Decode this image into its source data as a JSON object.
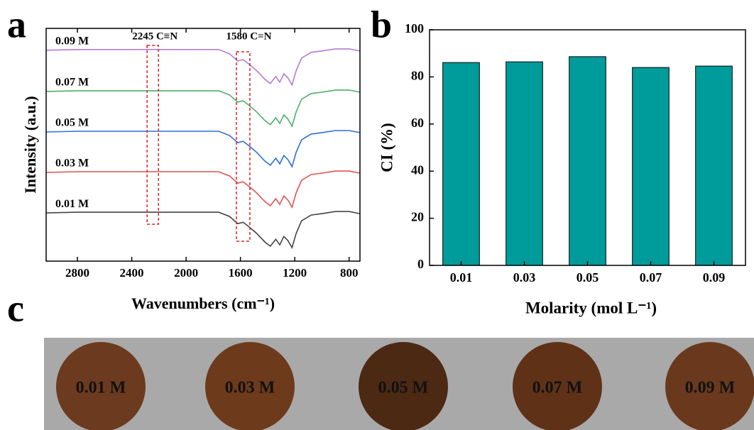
{
  "chart_data": [
    {
      "type": "line",
      "panel_label": "a",
      "x_label": "Wavenumbers (cm⁻¹)",
      "y_label": "Intensity (a.u.)",
      "x": [
        3030,
        2800,
        2400,
        2000,
        1760,
        1680,
        1620,
        1580,
        1540,
        1480,
        1420,
        1380,
        1340,
        1310,
        1280,
        1250,
        1220,
        1190,
        1150,
        1080,
        1000,
        900,
        800,
        720
      ],
      "series": [
        {
          "name": "0.09 M",
          "color": "#b47ad6",
          "values": [
            90.6,
            90.9,
            90.9,
            90.9,
            90.9,
            89.1,
            86.0,
            86.6,
            84.8,
            81.8,
            78.1,
            76.3,
            79.3,
            76.9,
            80.5,
            78.7,
            75.7,
            81.8,
            87.2,
            89.7,
            90.3,
            91.2,
            91.2,
            90.3
          ]
        },
        {
          "name": "0.07 M",
          "color": "#4fae6c",
          "values": [
            72.9,
            73.2,
            73.2,
            73.2,
            73.2,
            71.4,
            68.3,
            68.9,
            67.1,
            64.1,
            60.4,
            58.6,
            61.6,
            59.2,
            62.8,
            61.0,
            58.0,
            64.1,
            69.5,
            72.0,
            72.6,
            73.5,
            73.5,
            72.6
          ]
        },
        {
          "name": "0.05 M",
          "color": "#2f6fd6",
          "values": [
            55.5,
            55.8,
            55.8,
            55.8,
            55.8,
            54.0,
            50.9,
            51.5,
            49.7,
            46.7,
            43.0,
            41.2,
            44.2,
            41.8,
            45.4,
            43.6,
            40.6,
            46.7,
            52.1,
            54.6,
            55.2,
            56.1,
            56.1,
            55.2
          ]
        },
        {
          "name": "0.03 M",
          "color": "#e05252",
          "values": [
            38.1,
            38.4,
            38.4,
            38.4,
            38.4,
            36.6,
            33.5,
            34.1,
            32.3,
            29.3,
            25.6,
            23.8,
            26.8,
            24.4,
            28.0,
            26.2,
            23.2,
            29.3,
            34.7,
            37.2,
            37.8,
            38.7,
            38.7,
            37.8
          ]
        },
        {
          "name": "0.01 M",
          "color": "#444444",
          "values": [
            20.7,
            21.0,
            21.0,
            21.0,
            21.0,
            19.2,
            16.1,
            16.7,
            14.9,
            11.9,
            8.2,
            6.4,
            9.4,
            7.0,
            10.6,
            8.8,
            5.8,
            11.9,
            17.3,
            19.8,
            20.4,
            21.3,
            21.3,
            20.4
          ]
        }
      ],
      "xlim": [
        3030,
        720
      ],
      "ylim": [
        0,
        100
      ],
      "xticks": [
        2800,
        2400,
        2000,
        1600,
        1200,
        800
      ],
      "annotations": [
        {
          "text": "2245 C≡N",
          "x": 2245
        },
        {
          "text": "1580 C=N",
          "x": 1580
        }
      ]
    },
    {
      "type": "bar",
      "panel_label": "b",
      "x_label": "Molarity (mol L⁻¹)",
      "y_label": "CI (%)",
      "categories": [
        "0.01",
        "0.03",
        "0.05",
        "0.07",
        "0.09"
      ],
      "values": [
        86.1,
        86.4,
        88.6,
        84.0,
        84.6
      ],
      "color": "#009b9b",
      "ylim": [
        0,
        100
      ],
      "yticks": [
        0,
        20,
        40,
        60,
        80,
        100
      ]
    }
  ],
  "photo": {
    "panel_label": "c",
    "samples": [
      "0.01 M",
      "0.03 M",
      "0.05 M",
      "0.07 M",
      "0.09 M"
    ]
  }
}
